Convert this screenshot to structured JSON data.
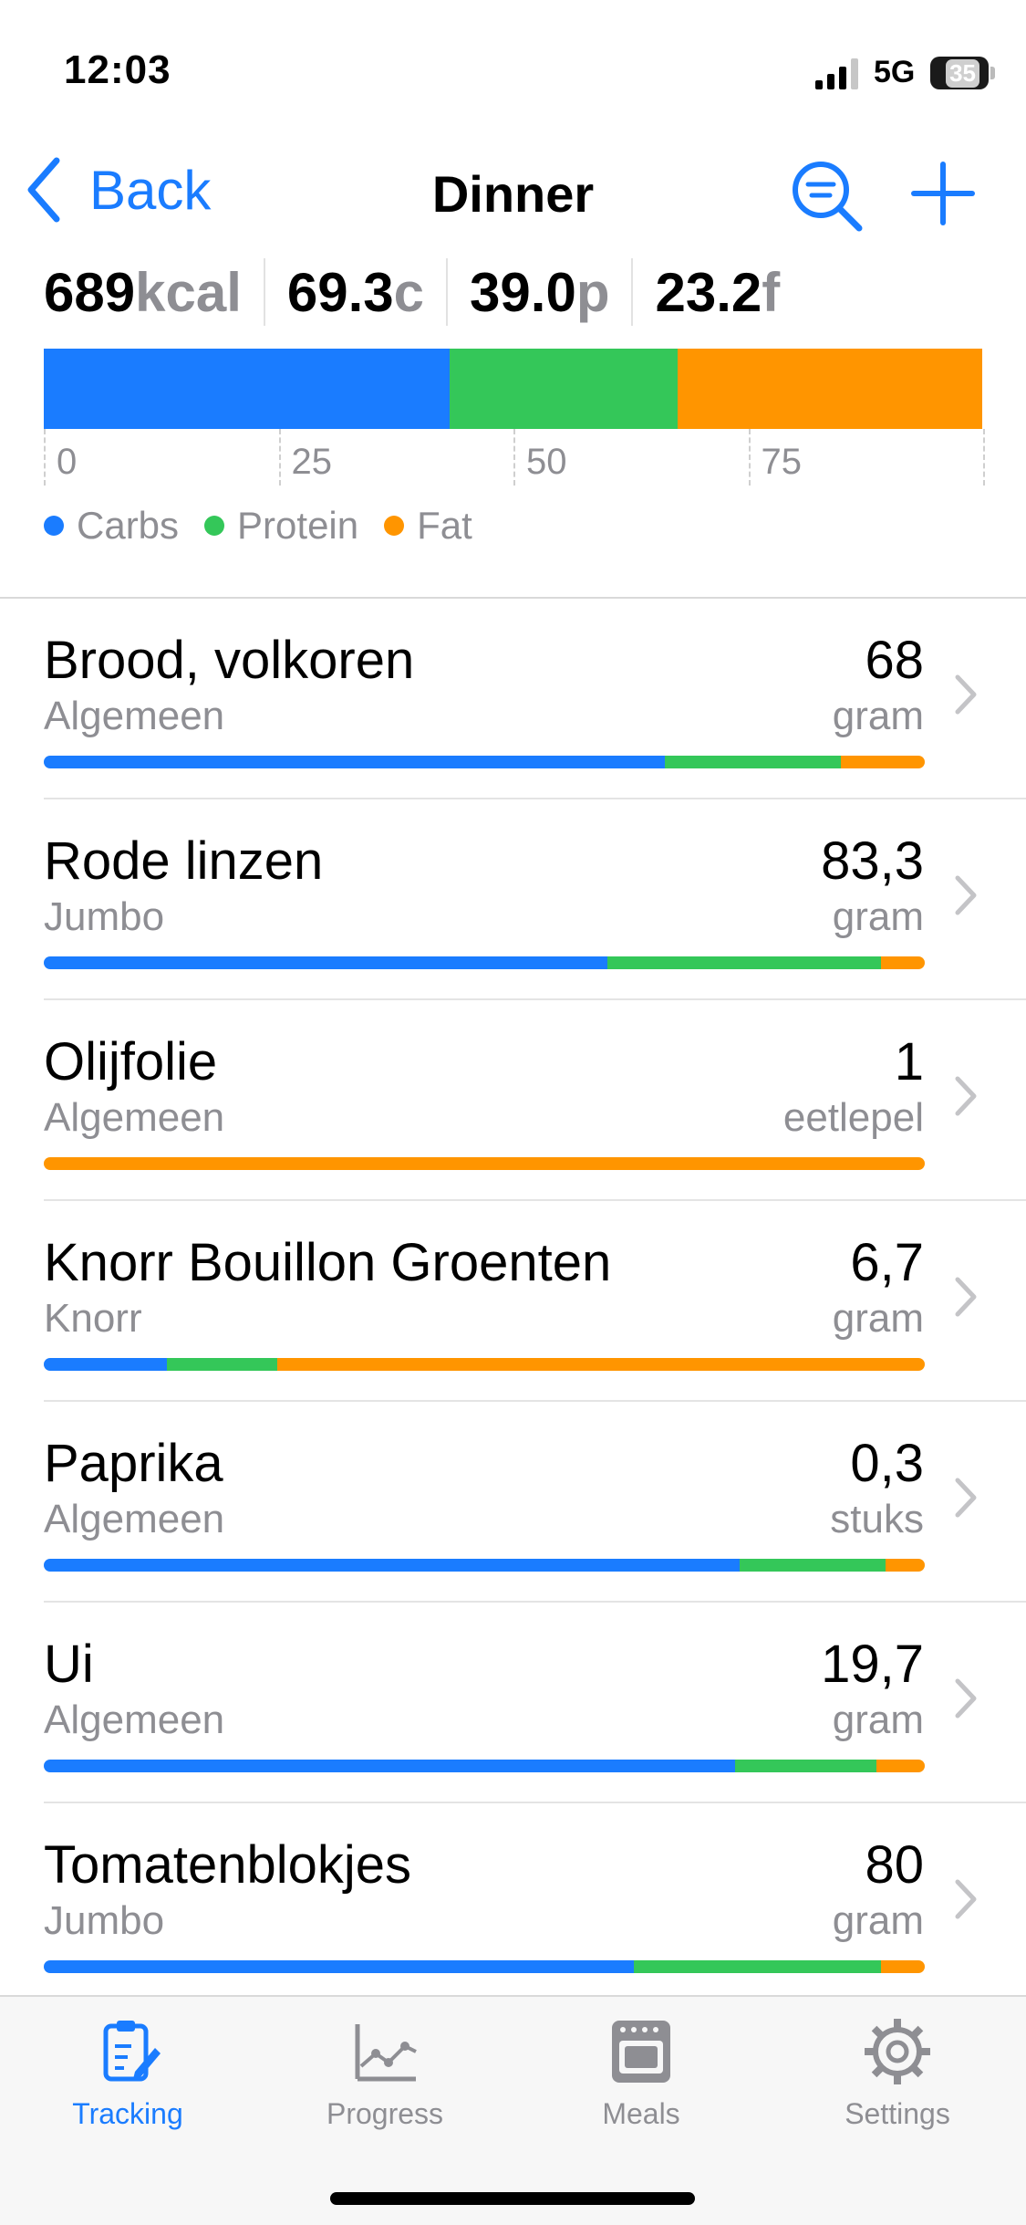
{
  "status_bar": {
    "time": "12:03",
    "network": "5G",
    "battery": "35"
  },
  "nav": {
    "back_label": "Back",
    "title": "Dinner"
  },
  "summary": {
    "kcal_value": "689",
    "kcal_unit": "kcal",
    "carbs_value": "69.3",
    "carbs_unit": "c",
    "protein_value": "39.0",
    "protein_unit": "p",
    "fat_value": "23.2",
    "fat_unit": "f"
  },
  "colors": {
    "carbs": "#1a7cff",
    "protein": "#34c759",
    "fat": "#ff9500",
    "accent": "#1a7cff"
  },
  "chart_data": {
    "type": "bar",
    "orientation": "horizontal-stacked",
    "series": [
      {
        "name": "Carbs",
        "value": 43.2
      },
      {
        "name": "Protein",
        "value": 24.3
      },
      {
        "name": "Fat",
        "value": 32.5
      }
    ],
    "xlim": [
      0,
      100
    ],
    "ticks": [
      "0",
      "25",
      "50",
      "75"
    ]
  },
  "legend": [
    "Carbs",
    "Protein",
    "Fat"
  ],
  "items": [
    {
      "name": "Brood, volkoren",
      "brand": "Algemeen",
      "qty": "68",
      "unit": "gram",
      "macros": [
        70.5,
        20,
        9.5
      ]
    },
    {
      "name": "Rode linzen",
      "brand": "Jumbo",
      "qty": "83,3",
      "unit": "gram",
      "macros": [
        64,
        31,
        5
      ]
    },
    {
      "name": "Olijfolie",
      "brand": "Algemeen",
      "qty": "1",
      "unit": "eetlepel",
      "macros": [
        0,
        0,
        100
      ]
    },
    {
      "name": "Knorr Bouillon Groenten",
      "brand": "Knorr",
      "qty": "6,7",
      "unit": "gram",
      "macros": [
        14,
        12.5,
        73.5
      ]
    },
    {
      "name": "Paprika",
      "brand": "Algemeen",
      "qty": "0,3",
      "unit": "stuks",
      "macros": [
        79,
        16.5,
        4.5
      ]
    },
    {
      "name": "Ui",
      "brand": "Algemeen",
      "qty": "19,7",
      "unit": "gram",
      "macros": [
        78.5,
        16,
        5.5
      ]
    },
    {
      "name": "Tomatenblokjes",
      "brand": "Jumbo",
      "qty": "80",
      "unit": "gram",
      "macros": [
        67,
        28,
        5
      ]
    }
  ],
  "tabs": [
    {
      "label": "Tracking",
      "icon": "clipboard-edit-icon",
      "active": true
    },
    {
      "label": "Progress",
      "icon": "line-chart-icon",
      "active": false
    },
    {
      "label": "Meals",
      "icon": "oven-icon",
      "active": false
    },
    {
      "label": "Settings",
      "icon": "gear-icon",
      "active": false
    }
  ]
}
